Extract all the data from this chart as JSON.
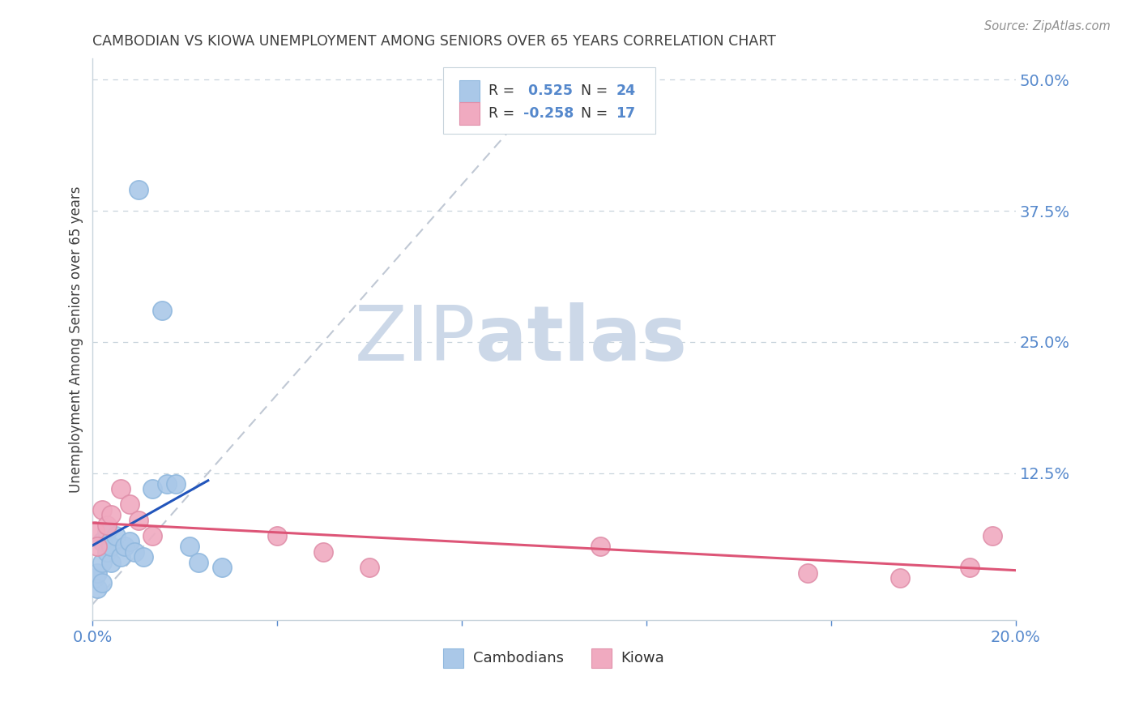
{
  "title": "CAMBODIAN VS KIOWA UNEMPLOYMENT AMONG SENIORS OVER 65 YEARS CORRELATION CHART",
  "source": "Source: ZipAtlas.com",
  "ylabel": "Unemployment Among Seniors over 65 years",
  "xlim": [
    0.0,
    0.2
  ],
  "ylim": [
    -0.015,
    0.52
  ],
  "cambodian_x": [
    0.0005,
    0.001,
    0.001,
    0.002,
    0.002,
    0.002,
    0.003,
    0.003,
    0.004,
    0.004,
    0.005,
    0.006,
    0.007,
    0.008,
    0.009,
    0.01,
    0.011,
    0.013,
    0.015,
    0.016,
    0.018,
    0.021,
    0.023,
    0.028
  ],
  "cambodian_y": [
    0.025,
    0.015,
    0.03,
    0.02,
    0.04,
    0.06,
    0.05,
    0.07,
    0.04,
    0.055,
    0.065,
    0.045,
    0.055,
    0.06,
    0.05,
    0.395,
    0.045,
    0.11,
    0.28,
    0.115,
    0.115,
    0.055,
    0.04,
    0.035
  ],
  "kiowa_x": [
    0.0005,
    0.001,
    0.002,
    0.003,
    0.004,
    0.006,
    0.008,
    0.01,
    0.013,
    0.04,
    0.05,
    0.06,
    0.11,
    0.155,
    0.175,
    0.19,
    0.195
  ],
  "kiowa_y": [
    0.07,
    0.055,
    0.09,
    0.075,
    0.085,
    0.11,
    0.095,
    0.08,
    0.065,
    0.065,
    0.05,
    0.035,
    0.055,
    0.03,
    0.025,
    0.035,
    0.065
  ],
  "cambodian_R": 0.525,
  "cambodian_N": 24,
  "kiowa_R": -0.258,
  "kiowa_N": 17,
  "cambodian_color": "#aac8e8",
  "cambodian_edge_color": "#90b8de",
  "cambodian_line_color": "#2255bb",
  "kiowa_color": "#f0aac0",
  "kiowa_edge_color": "#e090aa",
  "kiowa_line_color": "#dd5577",
  "ref_line_color": "#c0c8d4",
  "background_color": "#ffffff",
  "grid_color": "#c8d4dc",
  "title_color": "#404040",
  "source_color": "#909090",
  "ylabel_color": "#404040",
  "watermark_zip_color": "#ccd8e8",
  "watermark_atlas_color": "#ccd8e8",
  "tick_color": "#5588cc",
  "ytick_right_vals": [
    0.125,
    0.25,
    0.375,
    0.5
  ],
  "ytick_right_labels": [
    "12.5%",
    "25.0%",
    "37.5%",
    "50.0%"
  ]
}
